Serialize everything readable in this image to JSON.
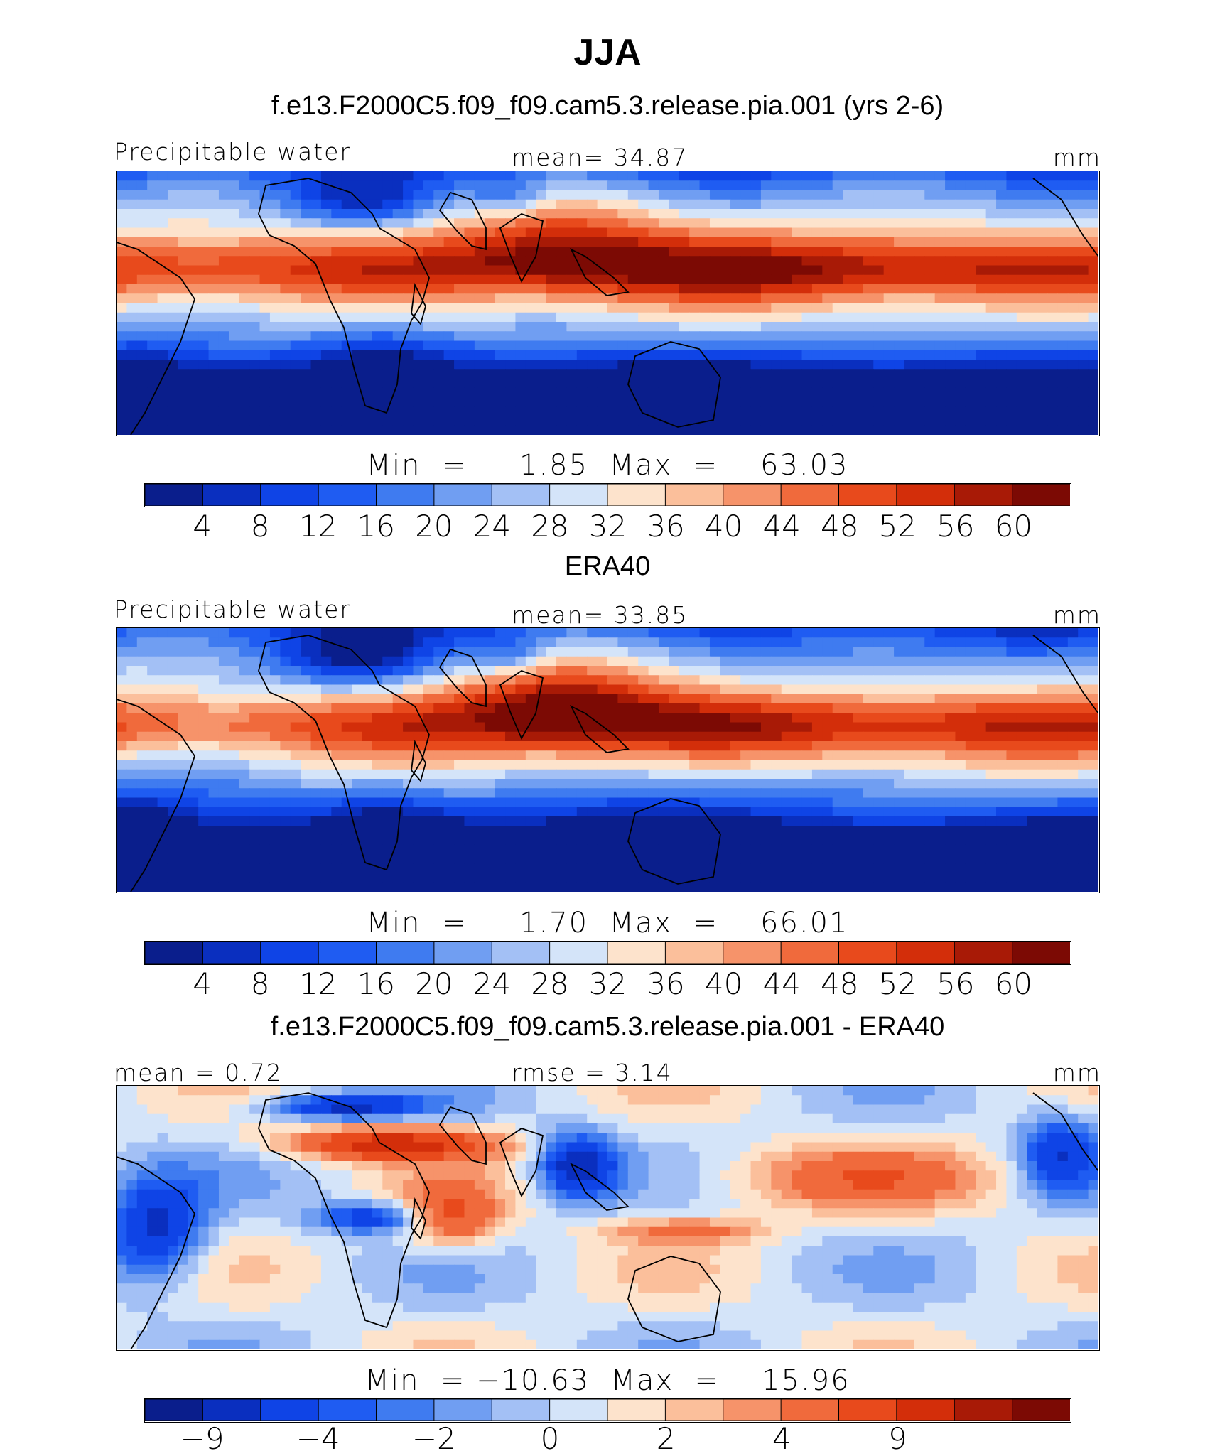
{
  "title": "JJA",
  "panels": [
    {
      "id": "model",
      "subtitle": "f.e13.F2000C5.f09_f09.cam5.3.release.pia.001 (yrs 2-6)",
      "left_label": "Precipitable water",
      "mid_label": "mean=   34.87",
      "right_label": "mm",
      "stats": "Min  =     1.85  Max  =    63.03",
      "palette": [
        "#0a1e8c",
        "#0a2fbf",
        "#0f44e6",
        "#1f5cf2",
        "#3f7bf0",
        "#709ef2",
        "#a3c0f5",
        "#d4e4f9",
        "#fde3cc",
        "#fbbf9b",
        "#f6936a",
        "#f06a3c",
        "#e84a1c",
        "#d32e0a",
        "#a81a06",
        "#7c0a04"
      ],
      "ticks": [
        "4",
        "8",
        "12",
        "16",
        "20",
        "24",
        "28",
        "32",
        "36",
        "40",
        "44",
        "48",
        "52",
        "56",
        "60"
      ],
      "field": "model"
    },
    {
      "id": "obs",
      "subtitle": "ERA40",
      "left_label": "Precipitable water",
      "mid_label": "mean=   33.85",
      "right_label": "mm",
      "stats": "Min  =     1.70  Max  =    66.01",
      "palette": [
        "#0a1e8c",
        "#0a2fbf",
        "#0f44e6",
        "#1f5cf2",
        "#3f7bf0",
        "#709ef2",
        "#a3c0f5",
        "#d4e4f9",
        "#fde3cc",
        "#fbbf9b",
        "#f6936a",
        "#f06a3c",
        "#e84a1c",
        "#d32e0a",
        "#a81a06",
        "#7c0a04"
      ],
      "ticks": [
        "4",
        "8",
        "12",
        "16",
        "20",
        "24",
        "28",
        "32",
        "36",
        "40",
        "44",
        "48",
        "52",
        "56",
        "60"
      ],
      "field": "obs"
    },
    {
      "id": "diff",
      "subtitle": "f.e13.F2000C5.f09_f09.cam5.3.release.pia.001 - ERA40",
      "left_label": "mean =    0.72",
      "mid_label": "rmse =    3.14",
      "right_label": "mm",
      "stats": "Min  = −10.63  Max  =    15.96",
      "palette": [
        "#0a1e8c",
        "#0a2fbf",
        "#0f44e6",
        "#1f5cf2",
        "#3f7bf0",
        "#709ef2",
        "#a3c0f5",
        "#d4e4f9",
        "#fde3cc",
        "#fbbf9b",
        "#f6936a",
        "#f06a3c",
        "#e84a1c",
        "#d32e0a",
        "#a81a06",
        "#7c0a04"
      ],
      "ticks": [
        "−9",
        "",
        "−4",
        "",
        "−2",
        "",
        "0",
        "",
        "2",
        "",
        "4",
        "",
        "9",
        "",
        ""
      ],
      "field": "diff"
    }
  ]
}
